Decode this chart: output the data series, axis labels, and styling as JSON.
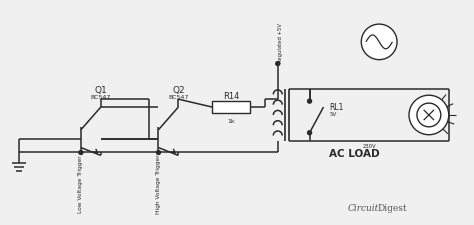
{
  "bg_color": "#f0f0f0",
  "line_color": "#2a2a2a",
  "text_color": "#2a2a2a",
  "components": {
    "Q1_label": "Q1",
    "Q1_sub": "BC547",
    "Q1_trigger": "Low Voltage Trigger",
    "Q2_label": "Q2",
    "Q2_sub": "BC547",
    "Q2_trigger": "High Voltage Trigger",
    "R14_label": "R14",
    "R14_sub": "1k",
    "RL1_label": "RL1",
    "RL1_sub": "5V",
    "regulated": "Regulated +5V",
    "ac_load": "AC LOAD",
    "ac_voltage": "230V"
  }
}
